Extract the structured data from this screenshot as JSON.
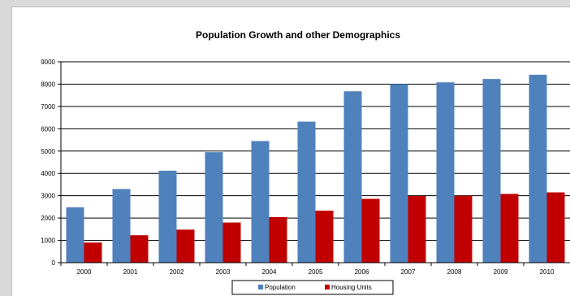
{
  "chart_data": {
    "type": "bar",
    "title": "Population Growth and other Demographics",
    "xlabel": "",
    "ylabel": "",
    "categories": [
      "2000",
      "2001",
      "2002",
      "2003",
      "2004",
      "2005",
      "2006",
      "2007",
      "2008",
      "2009",
      "2010"
    ],
    "series": [
      {
        "name": "Population",
        "color": "#4f81bd",
        "values": [
          2480,
          3300,
          4120,
          4950,
          5450,
          6320,
          7680,
          8000,
          8080,
          8230,
          8420
        ]
      },
      {
        "name": "Housing Units",
        "color": "#c00000",
        "values": [
          900,
          1230,
          1480,
          1800,
          2040,
          2330,
          2860,
          2990,
          3000,
          3080,
          3150
        ]
      }
    ],
    "ylim": [
      0,
      9000
    ],
    "yticks": [
      "0",
      "1000",
      "2000",
      "3000",
      "4000",
      "5000",
      "6000",
      "7000",
      "8000",
      "9000"
    ],
    "grid": true,
    "legend_position": "bottom"
  }
}
